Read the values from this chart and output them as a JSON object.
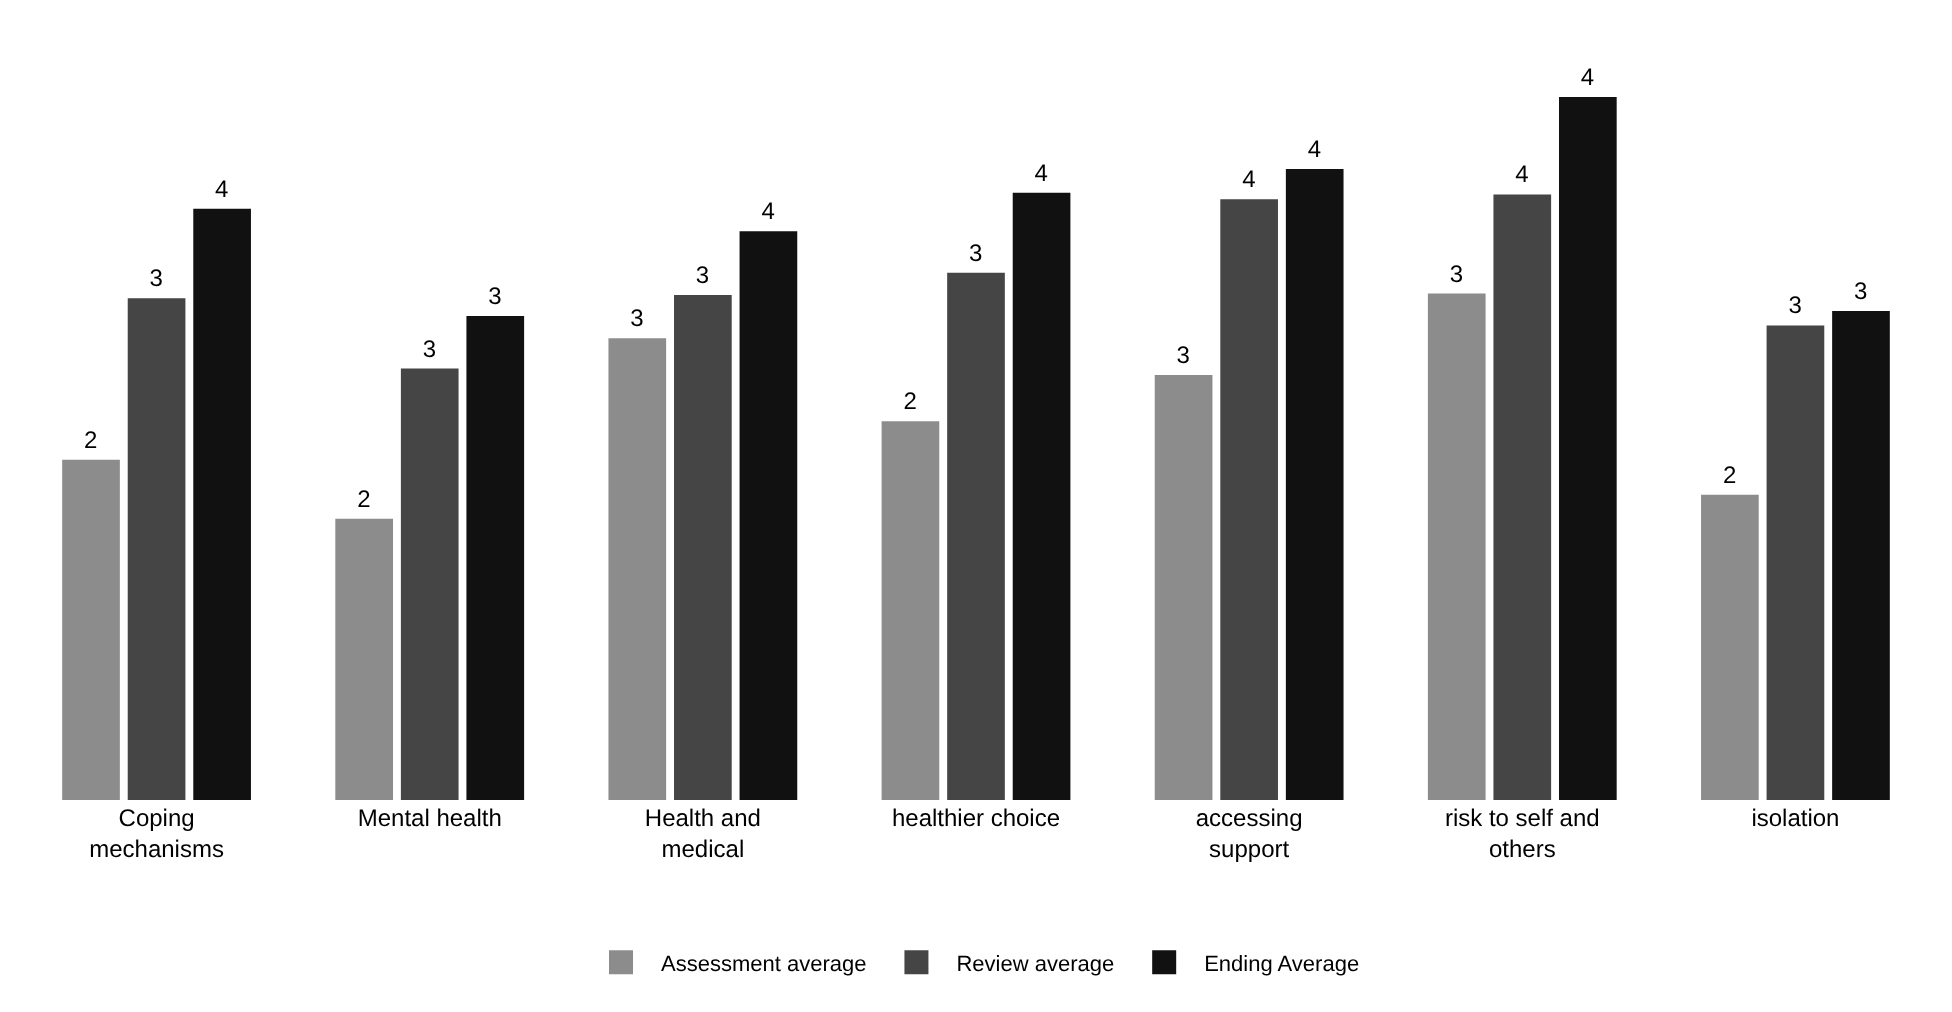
{
  "chart_data": {
    "type": "bar",
    "categories": [
      "Coping mechanisms",
      "Mental health",
      "Health and medical",
      "healthier choice",
      "accessing support",
      "risk to self and others",
      "isolation"
    ],
    "series": [
      {
        "name": "Assessment average",
        "color": "#8c8c8c",
        "values": [
          2.13,
          1.76,
          2.89,
          2.37,
          2.66,
          3.17,
          1.91
        ],
        "value_labels": [
          "2",
          "2",
          "3",
          "2",
          "3",
          "3",
          "2"
        ]
      },
      {
        "name": "Review average",
        "color": "#454545",
        "values": [
          3.14,
          2.7,
          3.16,
          3.3,
          3.76,
          3.79,
          2.97
        ],
        "value_labels": [
          "3",
          "3",
          "3",
          "3",
          "4",
          "4",
          "3"
        ]
      },
      {
        "name": "Ending Average",
        "color": "#111111",
        "values": [
          3.7,
          3.03,
          3.56,
          3.8,
          3.95,
          4.4,
          3.06
        ],
        "value_labels": [
          "4",
          "3",
          "4",
          "4",
          "4",
          "4",
          "3"
        ]
      }
    ],
    "legend": "bottom",
    "grid": false
  }
}
